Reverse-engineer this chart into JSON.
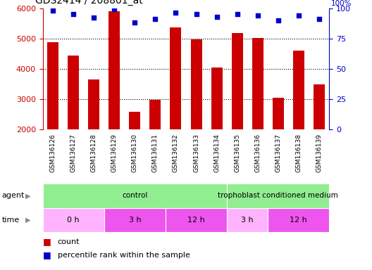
{
  "title": "GDS2414 / 208801_at",
  "samples": [
    "GSM136126",
    "GSM136127",
    "GSM136128",
    "GSM136129",
    "GSM136130",
    "GSM136131",
    "GSM136132",
    "GSM136133",
    "GSM136134",
    "GSM136135",
    "GSM136136",
    "GSM136137",
    "GSM136138",
    "GSM136139"
  ],
  "counts": [
    4880,
    4440,
    3640,
    5900,
    2580,
    2980,
    5360,
    4960,
    4040,
    5170,
    5020,
    3040,
    4600,
    3500
  ],
  "percentile_ranks": [
    98,
    95,
    92,
    99,
    88,
    91,
    96,
    95,
    93,
    95,
    94,
    90,
    94,
    91
  ],
  "bar_color": "#cc0000",
  "dot_color": "#0000cc",
  "ylim_left": [
    2000,
    6000
  ],
  "ylim_right": [
    0,
    100
  ],
  "yticks_left": [
    2000,
    3000,
    4000,
    5000,
    6000
  ],
  "yticks_right": [
    0,
    25,
    50,
    75,
    100
  ],
  "dotted_line_y": [
    3000,
    4000,
    5000
  ],
  "agent_groups": [
    {
      "label": "control",
      "start": 0,
      "end": 9,
      "color": "#90ee90"
    },
    {
      "label": "trophoblast conditioned medium",
      "start": 9,
      "end": 14,
      "color": "#90ee90"
    }
  ],
  "time_groups": [
    {
      "label": "0 h",
      "start": 0,
      "end": 3,
      "color": "#ffb3ff"
    },
    {
      "label": "3 h",
      "start": 3,
      "end": 6,
      "color": "#ee55ee"
    },
    {
      "label": "12 h",
      "start": 6,
      "end": 9,
      "color": "#ee55ee"
    },
    {
      "label": "3 h",
      "start": 9,
      "end": 11,
      "color": "#ffb3ff"
    },
    {
      "label": "12 h",
      "start": 11,
      "end": 14,
      "color": "#ee55ee"
    }
  ],
  "bar_color_red": "#cc0000",
  "dot_color_blue": "#0000cc",
  "ylabel_left_color": "#cc0000",
  "ylabel_right_color": "#0000cc",
  "xtick_bg": "#d8d8d8",
  "plot_bg": "#ffffff"
}
